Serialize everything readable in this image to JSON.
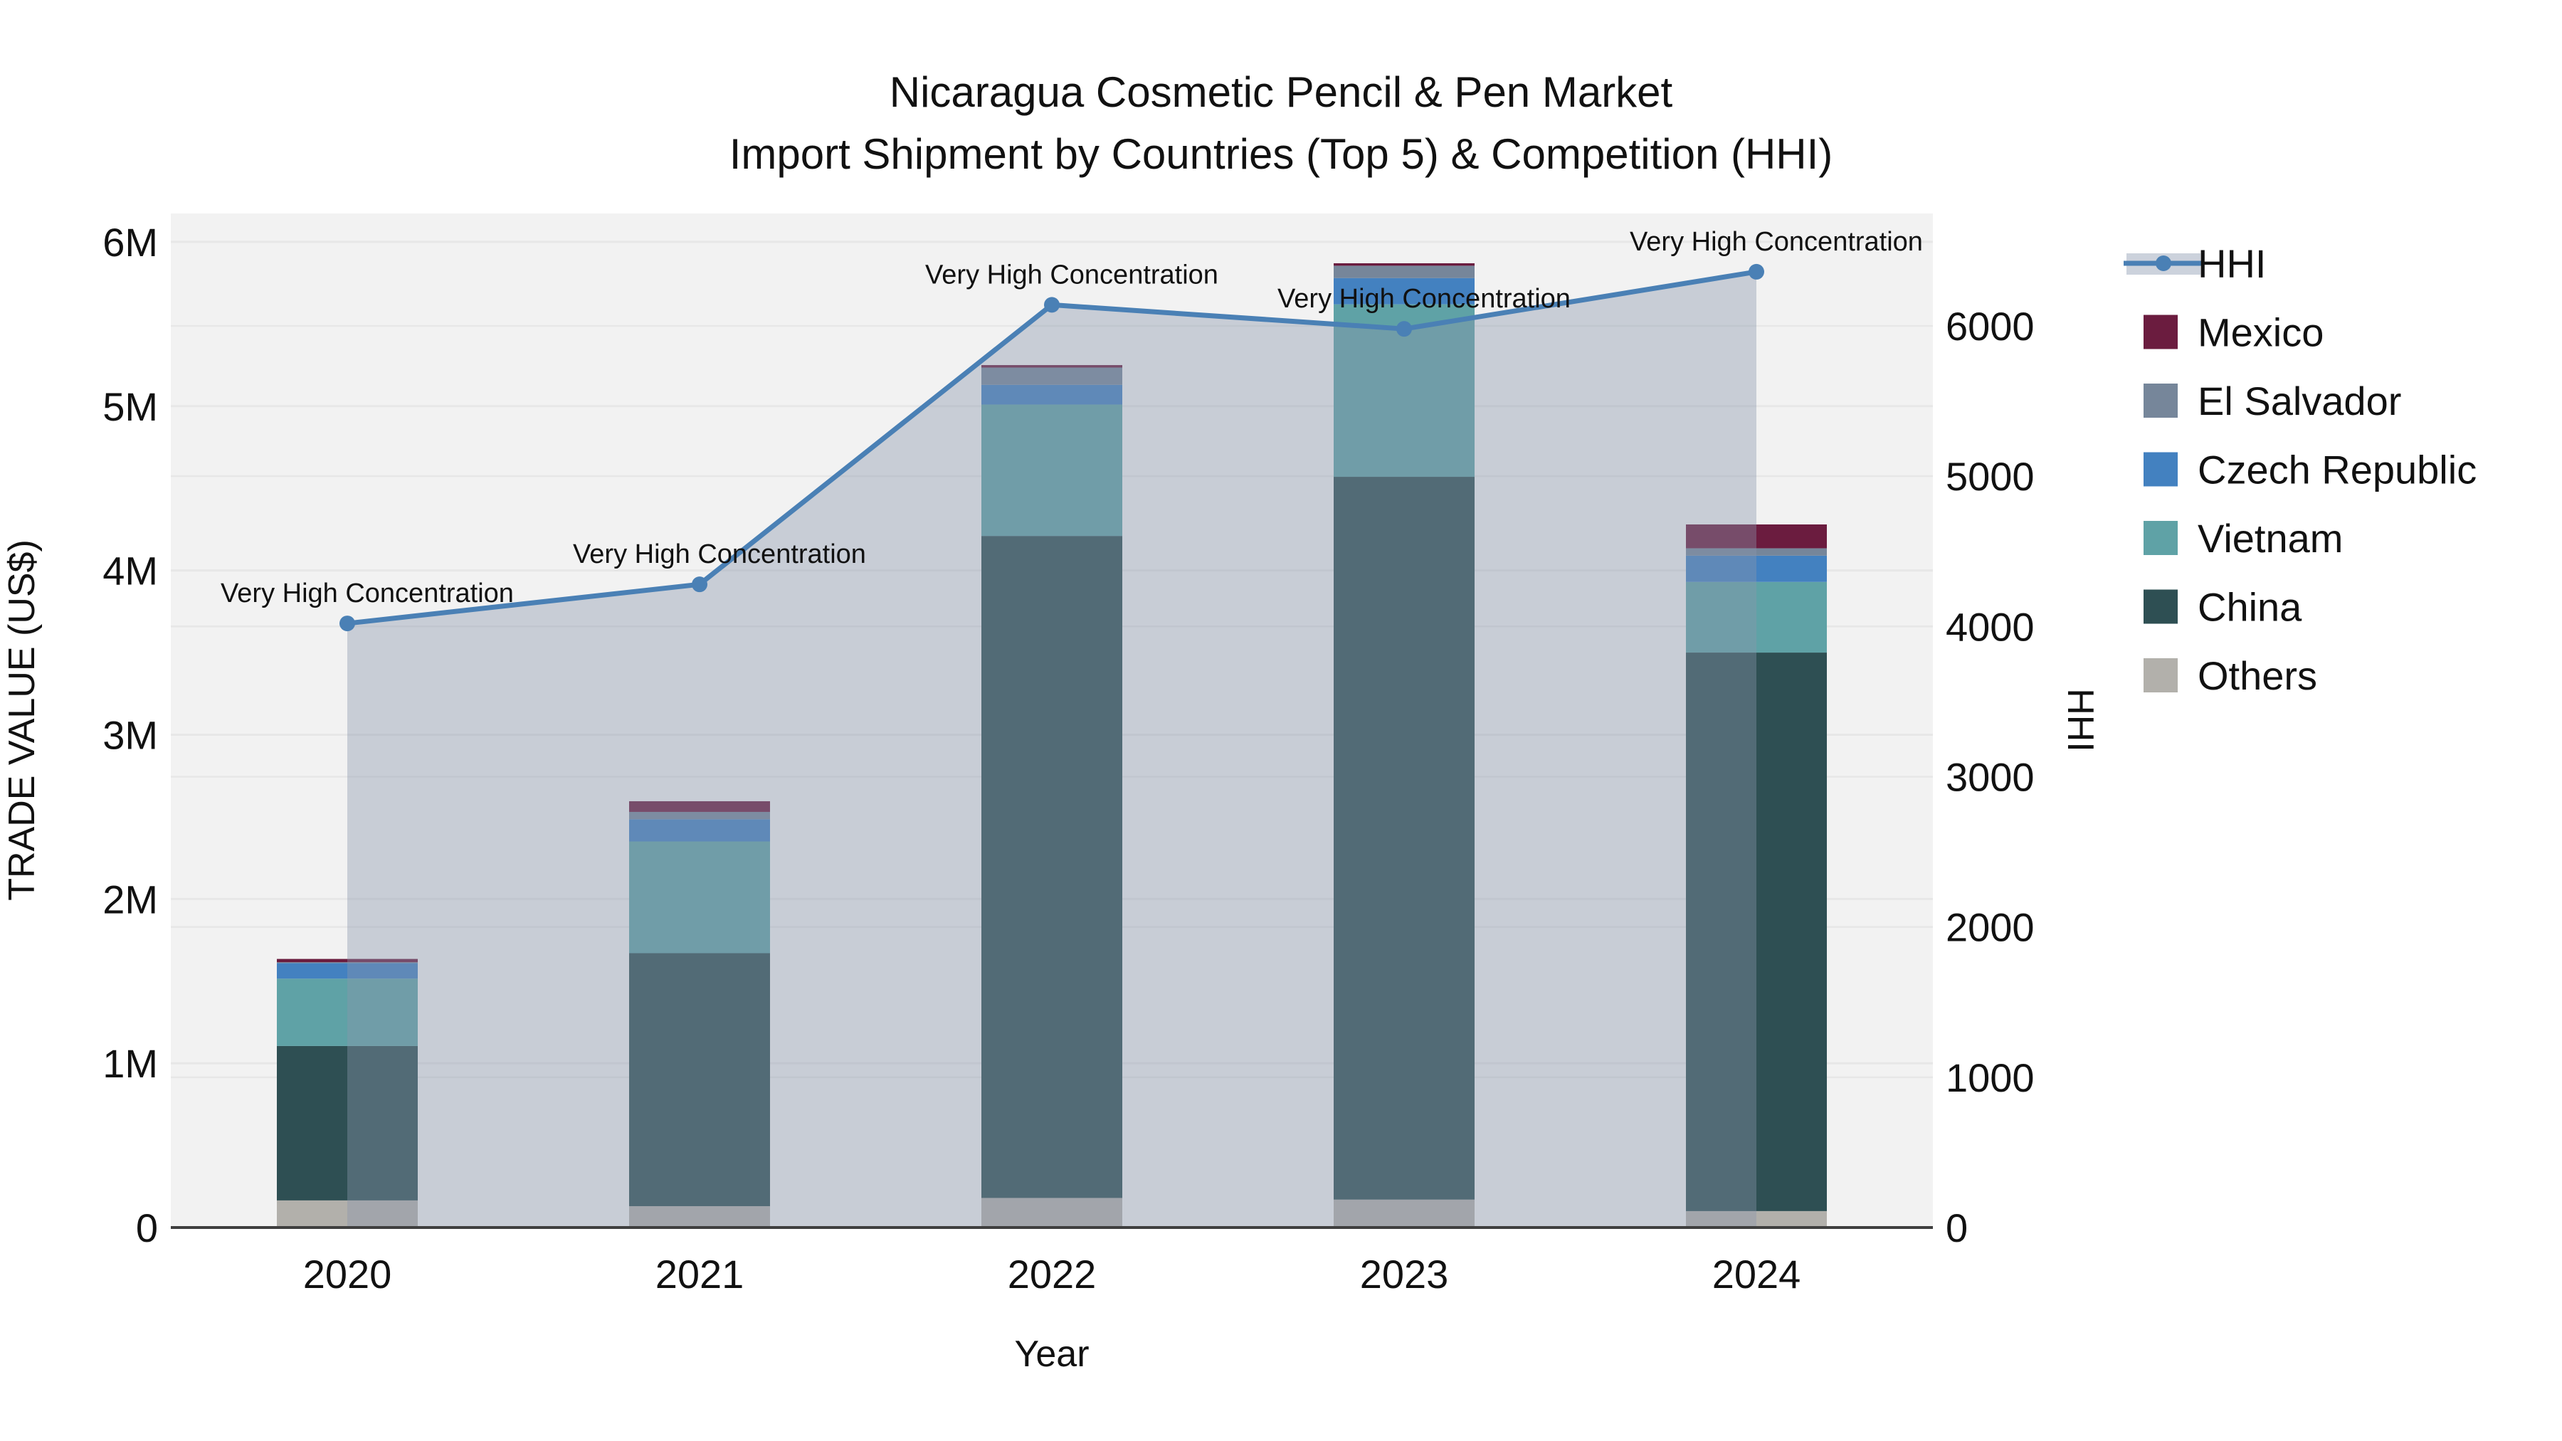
{
  "chart_data": {
    "type": [
      "bar",
      "line"
    ],
    "title_line1": "Nicaragua Cosmetic Pencil & Pen Market",
    "title_line2": "Import Shipment by Countries (Top 5) & Competition (HHI)",
    "xlabel": "Year",
    "ylabel_left": "TRADE VALUE (US$)",
    "ylabel_right": "HHI",
    "categories": [
      "2020",
      "2021",
      "2022",
      "2023",
      "2024"
    ],
    "left_axis_ticks": [
      "0",
      "1M",
      "2M",
      "3M",
      "4M",
      "5M",
      "6M"
    ],
    "left_axis_tick_values": [
      0,
      1000000,
      2000000,
      3000000,
      4000000,
      5000000,
      6000000
    ],
    "left_axis_range": [
      0,
      6173000
    ],
    "right_axis_ticks": [
      "0",
      "1000",
      "2000",
      "3000",
      "4000",
      "5000",
      "6000"
    ],
    "right_axis_tick_values": [
      0,
      1000,
      2000,
      3000,
      4000,
      5000,
      6000
    ],
    "right_axis_range": [
      0,
      6748
    ],
    "grid": true,
    "legend_position": "right-outside",
    "bar_stack_order_bottom_to_top": [
      "Others",
      "China",
      "Vietnam",
      "Czech Republic",
      "El Salvador",
      "Mexico"
    ],
    "series": [
      {
        "name": "Others",
        "color": "#b2b0ab",
        "values": [
          165000,
          130000,
          180000,
          170000,
          100000
        ]
      },
      {
        "name": "China",
        "color": "#2e4f53",
        "values": [
          940000,
          1540000,
          4030000,
          4400000,
          3400000
        ]
      },
      {
        "name": "Vietnam",
        "color": "#5fa2a6",
        "values": [
          410000,
          680000,
          800000,
          1050000,
          430000
        ]
      },
      {
        "name": "Czech Republic",
        "color": "#4381c0",
        "values": [
          95000,
          135000,
          120000,
          160000,
          160000
        ]
      },
      {
        "name": "El Salvador",
        "color": "#76869a",
        "values": [
          5000,
          45000,
          105000,
          75000,
          45000
        ]
      },
      {
        "name": "Mexico",
        "color": "#6b1c3f",
        "values": [
          20000,
          65000,
          15000,
          15000,
          145000
        ]
      }
    ],
    "bar_totals": [
      1635000,
      2595000,
      5250000,
      5870000,
      4280000
    ],
    "hhi": {
      "name": "HHI",
      "color": "#4a80b5",
      "area_fill": "rgba(138,150,173,0.40)",
      "values": [
        4020,
        4280,
        6140,
        5980,
        6360
      ]
    },
    "annotations": [
      {
        "text": "Very High Concentration",
        "year": "2020"
      },
      {
        "text": "Very High Concentration",
        "year": "2021"
      },
      {
        "text": "Very High Concentration",
        "year": "2022"
      },
      {
        "text": "Very High Concentration",
        "year": "2023"
      },
      {
        "text": "Very High Concentration",
        "year": "2024"
      }
    ],
    "legend_entries": [
      "HHI",
      "Mexico",
      "El Salvador",
      "Czech Republic",
      "Vietnam",
      "China",
      "Others"
    ],
    "colors": {
      "figure_background": "#ffffff",
      "plot_background": "#f2f2f2",
      "gridline": "#e7e7e7",
      "axis_line": "#3f3f3f",
      "text": "#111111"
    }
  }
}
